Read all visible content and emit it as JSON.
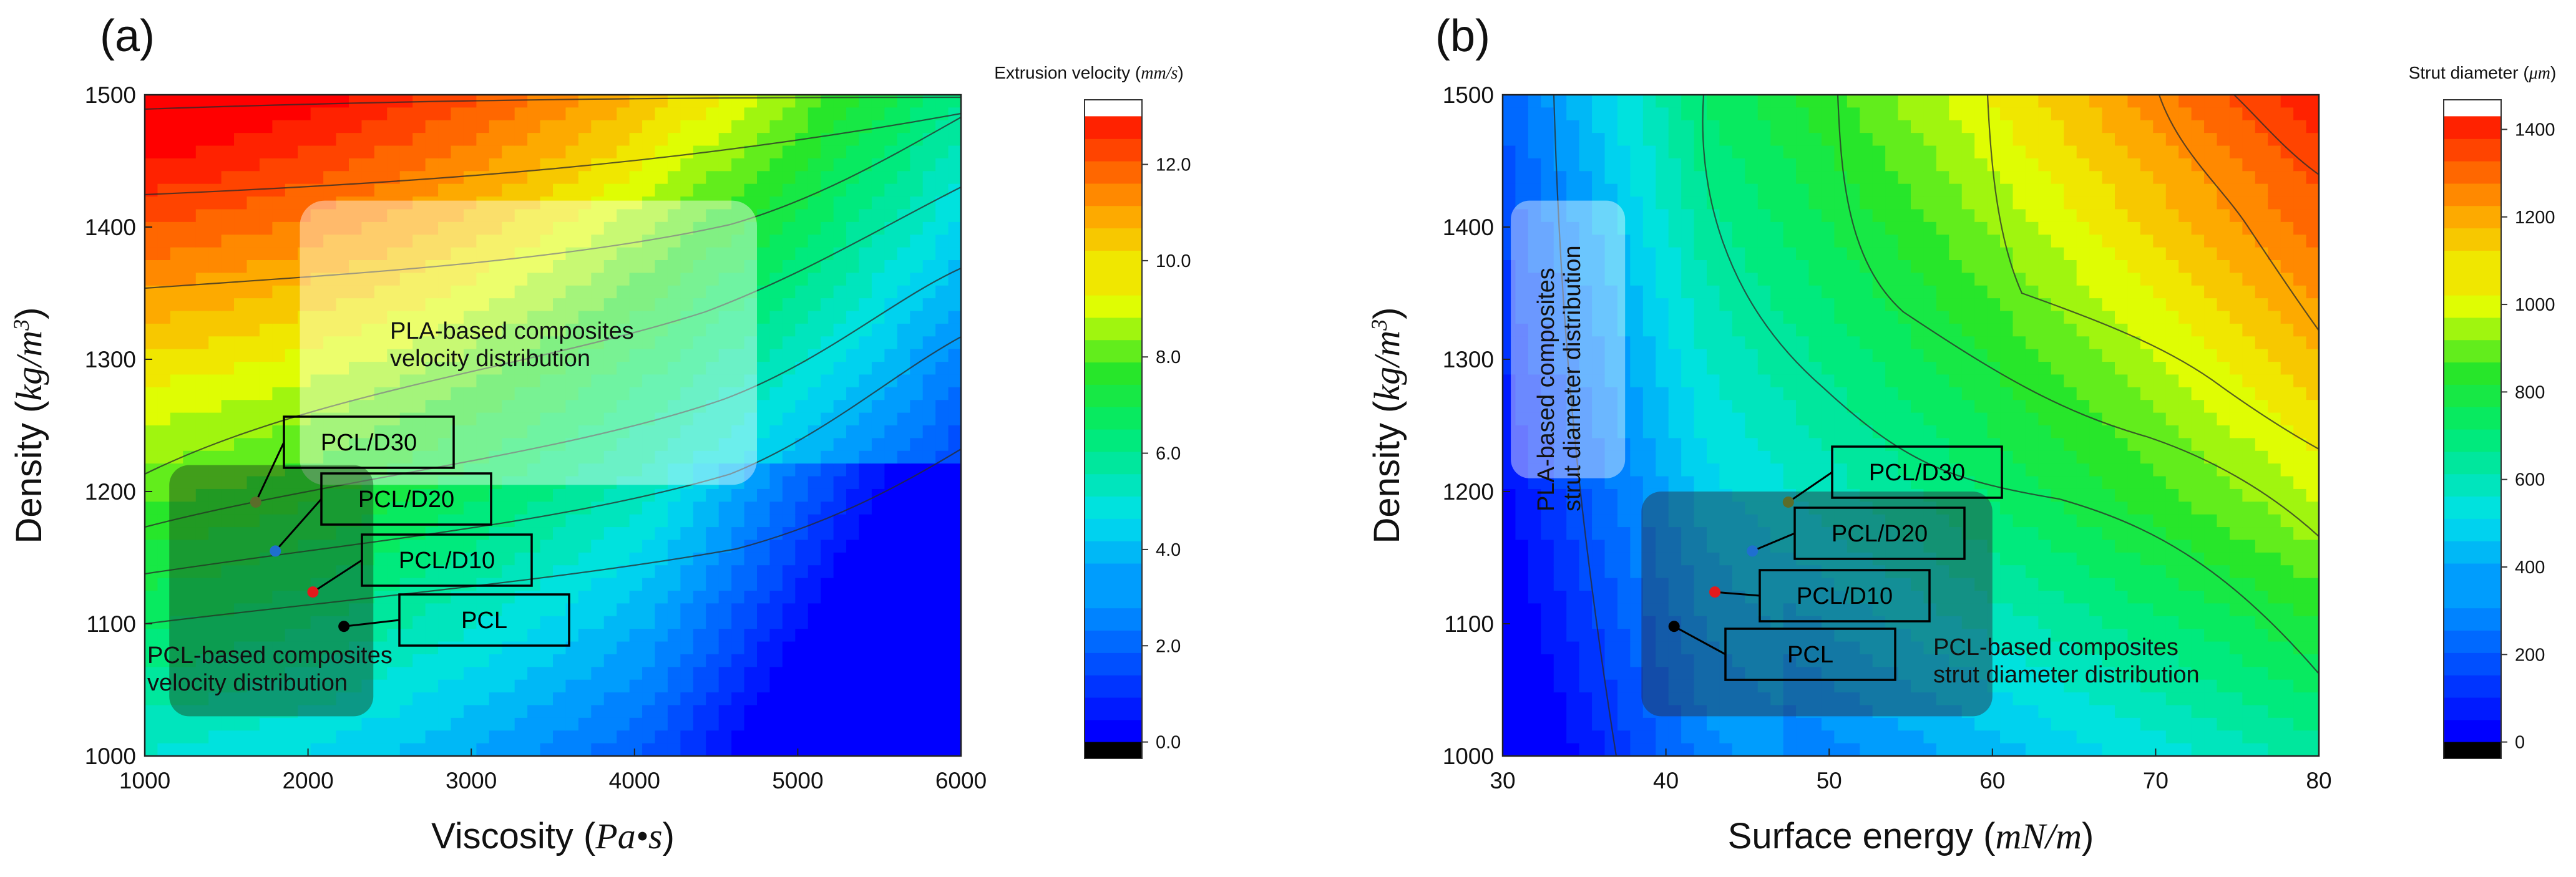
{
  "chart_data": [
    {
      "panel": "(a)",
      "type": "heatmap",
      "xlabel": "Viscosity",
      "xlabel_unit": "Pa•s",
      "ylabel": "Density",
      "ylabel_unit": "kg/m",
      "ylabel_unit_sup": "3",
      "xlim": [
        1000,
        6000
      ],
      "ylim": [
        1000,
        1500
      ],
      "xticks": [
        1000,
        2000,
        3000,
        4000,
        5000,
        6000
      ],
      "yticks": [
        1000,
        1100,
        1200,
        1300,
        1400,
        1500
      ],
      "colorbar": {
        "title": "Extrusion velocity",
        "unit": "mm/s",
        "range": [
          0,
          13
        ],
        "ticks": [
          0.0,
          2.0,
          4.0,
          6.0,
          8.0,
          10.0,
          12.0
        ],
        "tick_labels": [
          "0.0",
          "2.0",
          "4.0",
          "6.0",
          "8.0",
          "10.0",
          "12.0"
        ]
      },
      "points": [
        {
          "label": "PCL/D30",
          "x": 1680,
          "y": 1192,
          "color": "#5b6d2a"
        },
        {
          "label": "PCL/D20",
          "x": 1800,
          "y": 1155,
          "color": "#1f6fd0"
        },
        {
          "label": "PCL/D10",
          "x": 2030,
          "y": 1124,
          "color": "#e31a1c"
        },
        {
          "label": "PCL",
          "x": 2220,
          "y": 1098,
          "color": "#000000"
        }
      ],
      "regions": [
        {
          "label_lines": [
            "PLA-based composites",
            "velocity distribution"
          ],
          "x_range": [
            1950,
            4750
          ],
          "y_range": [
            1205,
            1420
          ]
        },
        {
          "label_lines": [
            "PCL-based composites",
            "velocity distribution"
          ],
          "x_range": [
            1150,
            2400
          ],
          "y_range": [
            1030,
            1220
          ]
        }
      ]
    },
    {
      "panel": "(b)",
      "type": "heatmap",
      "xlabel": "Surface energy",
      "xlabel_unit": "mN/m",
      "ylabel": "Density",
      "ylabel_unit": "kg/m",
      "ylabel_unit_sup": "3",
      "xlim": [
        30,
        80
      ],
      "ylim": [
        1000,
        1500
      ],
      "xticks": [
        30,
        40,
        50,
        60,
        70,
        80
      ],
      "yticks": [
        1000,
        1100,
        1200,
        1300,
        1400,
        1500
      ],
      "colorbar": {
        "title": "Strut diameter",
        "unit": "μm",
        "range": [
          0,
          1430
        ],
        "ticks": [
          0,
          200,
          400,
          600,
          800,
          1000,
          1200,
          1400
        ],
        "tick_labels": [
          "0",
          "200",
          "400",
          "600",
          "800",
          "1000",
          "1200",
          "1400"
        ]
      },
      "points": [
        {
          "label": "PCL/D30",
          "x": 47.5,
          "y": 1192,
          "color": "#5b6d2a"
        },
        {
          "label": "PCL/D20",
          "x": 45.3,
          "y": 1155,
          "color": "#1f6fd0"
        },
        {
          "label": "PCL/D10",
          "x": 43.0,
          "y": 1124,
          "color": "#e31a1c"
        },
        {
          "label": "PCL",
          "x": 40.5,
          "y": 1098,
          "color": "#000000"
        }
      ],
      "regions": [
        {
          "label_lines": [
            "PLA-based composites",
            "strut diameter distribution"
          ],
          "x_range": [
            30.5,
            37.5
          ],
          "y_range": [
            1210,
            1420
          ]
        },
        {
          "label_lines": [
            "PCL-based composites",
            "strut diameter distribution"
          ],
          "x_range": [
            38.5,
            60
          ],
          "y_range": [
            1030,
            1200
          ]
        }
      ]
    }
  ]
}
